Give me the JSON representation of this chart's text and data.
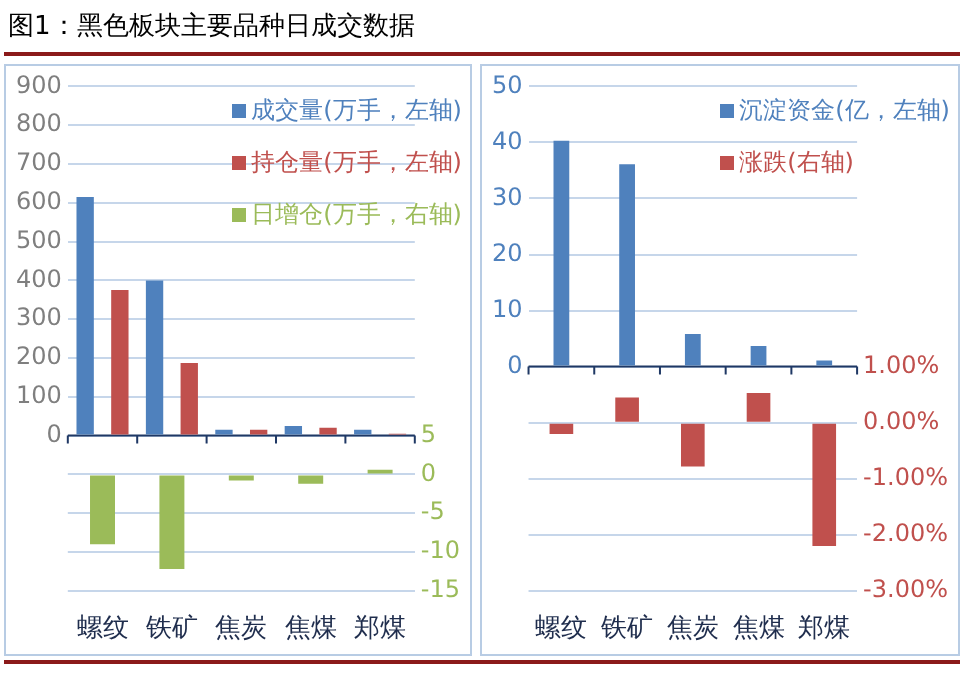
{
  "chart_data": [
    {
      "type": "bar",
      "title": "图1：黑色板块主要品种日成交数据",
      "categories": [
        "螺纹",
        "铁矿",
        "焦炭",
        "焦煤",
        "郑煤"
      ],
      "series": [
        {
          "name": "成交量(万手，左轴)",
          "color": "#4f81bd",
          "values": [
            615,
            400,
            15,
            25,
            15
          ]
        },
        {
          "name": "持仓量(万手，左轴)",
          "color": "#c0504d",
          "values": [
            375,
            187,
            15,
            20,
            5
          ]
        },
        {
          "name": "日增仓(万手，右轴)",
          "color": "#9bbb59",
          "axis": "y2",
          "values": [
            -9,
            -12.2,
            -0.8,
            -1.2,
            0.6
          ]
        }
      ],
      "ylim": [
        -400,
        900
      ],
      "yticks": [
        0,
        100,
        200,
        300,
        400,
        500,
        600,
        700,
        800,
        900
      ],
      "y2lim": [
        -15,
        50
      ],
      "y2ticks": [
        5,
        0,
        -5,
        -10,
        -15
      ],
      "grid": true,
      "legend": "top right",
      "ref_lines": [
        {
          "axis": "y",
          "value": 0,
          "color": "#1f3864"
        }
      ]
    },
    {
      "type": "bar",
      "categories": [
        "螺纹",
        "铁矿",
        "焦炭",
        "焦煤",
        "郑煤"
      ],
      "series": [
        {
          "name": "沉淀资金(亿，左轴)",
          "color": "#4f81bd",
          "values": [
            40.3,
            36.1,
            5.8,
            3.7,
            1.1
          ]
        },
        {
          "name": "涨跌(右轴)",
          "color": "#c0504d",
          "axis": "y2",
          "values": [
            -0.2,
            0.45,
            -0.78,
            0.53,
            -2.2
          ]
        }
      ],
      "ylim": [
        -40,
        50
      ],
      "yticks": [
        0,
        10,
        20,
        30,
        40,
        50
      ],
      "y2lim": [
        -3,
        6
      ],
      "y2ticks": [
        {
          "value": 1,
          "label": "1.00%"
        },
        {
          "value": 0,
          "label": "0.00%"
        },
        {
          "value": -1,
          "label": "-1.00%"
        },
        {
          "value": -2,
          "label": "-2.00%"
        },
        {
          "value": -3,
          "label": "-3.00%"
        }
      ],
      "grid": true,
      "legend": "top right",
      "ref_lines": [
        {
          "axis": "y",
          "value": 0,
          "color": "#1f3864"
        }
      ]
    }
  ]
}
